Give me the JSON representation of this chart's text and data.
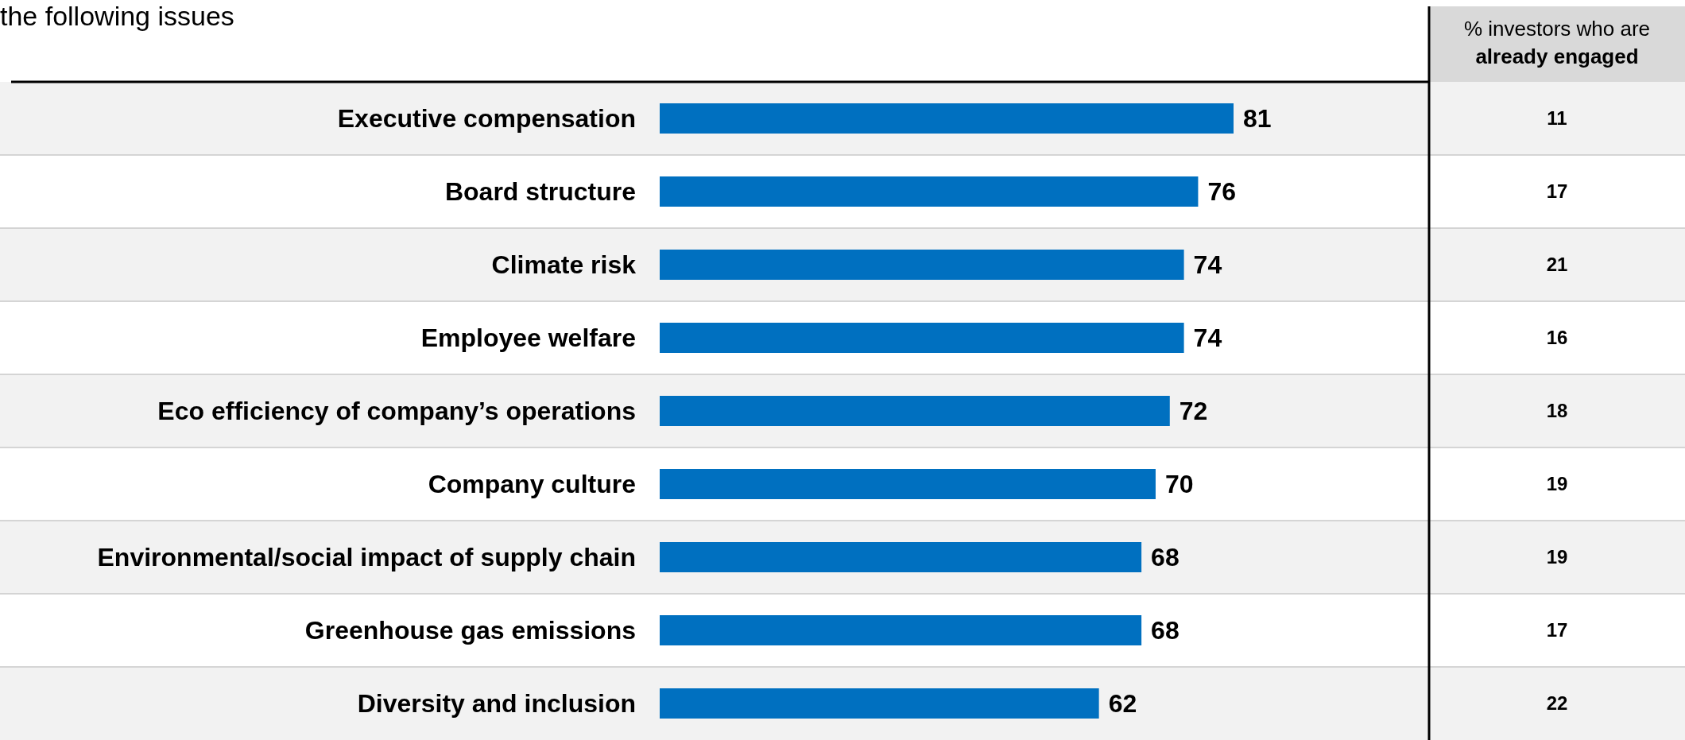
{
  "chart_data": [
    {
      "type": "bar",
      "orientation": "horizontal",
      "title": "the following issues",
      "categories": [
        "Executive compensation",
        "Board structure",
        "Climate risk",
        "Employee welfare",
        "Eco efficiency of company’s operations",
        "Company culture",
        "Environmental/social impact of supply chain",
        "Greenhouse gas emissions",
        "Diversity and inclusion"
      ],
      "series": [
        {
          "color": "#0070c0",
          "values": [
            81,
            76,
            74,
            74,
            72,
            70,
            68,
            68,
            62
          ]
        }
      ],
      "data_labels": true
    },
    {
      "type": "other",
      "title": "% investors who are already engaged",
      "categories": [
        null,
        null,
        null,
        null,
        null,
        null,
        null,
        null,
        null
      ],
      "values": [
        11,
        17,
        21,
        16,
        18,
        19,
        19,
        17,
        22
      ],
      "data_labels": true
    }
  ]
}
